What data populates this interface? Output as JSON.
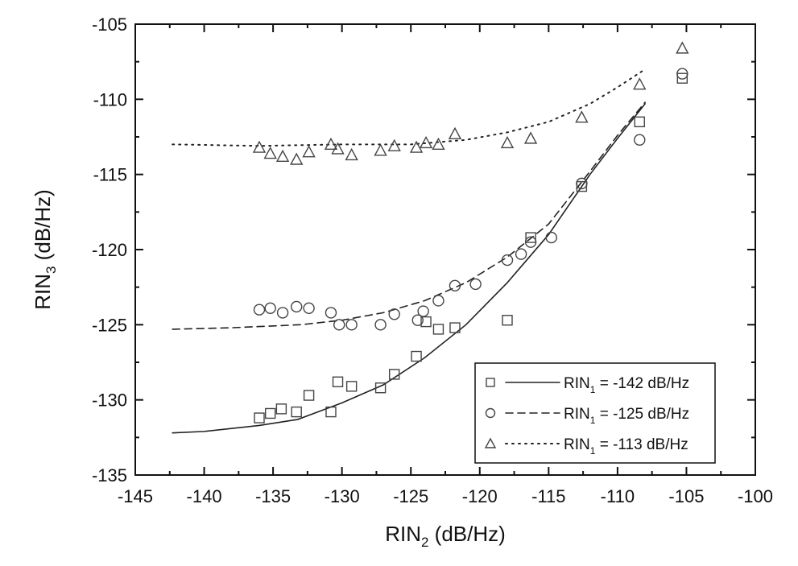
{
  "chart_data": {
    "type": "scatter",
    "title": "",
    "xlabel": "RIN",
    "xlabel_sub": "2",
    "xlabel_unit": " (dB/Hz)",
    "ylabel": "RIN",
    "ylabel_sub": "3",
    "ylabel_unit": " (dB/Hz)",
    "xlim": [
      -145,
      -100
    ],
    "ylim": [
      -135,
      -105
    ],
    "xticks": [
      -145,
      -140,
      -135,
      -130,
      -125,
      -120,
      -115,
      -110,
      -105,
      -100
    ],
    "yticks": [
      -135,
      -130,
      -125,
      -120,
      -115,
      -110,
      -105
    ],
    "grid": false,
    "legend_position": "bottom-right",
    "series": [
      {
        "name": "RIN1 = -142 dB/Hz",
        "legend_prefix": "RIN",
        "legend_sub": "1",
        "legend_suffix": " = -142 dB/Hz",
        "marker": "square",
        "line": "solid",
        "points": [
          [
            -136,
            -131.2
          ],
          [
            -135.2,
            -130.9
          ],
          [
            -134.4,
            -130.6
          ],
          [
            -133.3,
            -130.8
          ],
          [
            -132.4,
            -129.7
          ],
          [
            -130.8,
            -130.8
          ],
          [
            -130.3,
            -128.8
          ],
          [
            -129.3,
            -129.1
          ],
          [
            -127.2,
            -129.2
          ],
          [
            -126.2,
            -128.3
          ],
          [
            -124.6,
            -127.1
          ],
          [
            -123.9,
            -124.8
          ],
          [
            -123,
            -125.3
          ],
          [
            -121.8,
            -125.2
          ],
          [
            -118,
            -124.7
          ],
          [
            -116.3,
            -119.2
          ],
          [
            -112.6,
            -115.8
          ],
          [
            -108.4,
            -111.5
          ],
          [
            -105.3,
            -108.6
          ]
        ],
        "fit": [
          [
            -142.3,
            -132.2
          ],
          [
            -140,
            -132.1
          ],
          [
            -136,
            -131.7
          ],
          [
            -133.2,
            -131.3
          ],
          [
            -130,
            -130.2
          ],
          [
            -127,
            -129
          ],
          [
            -124,
            -127.2
          ],
          [
            -121,
            -125
          ],
          [
            -118,
            -122.2
          ],
          [
            -115,
            -119
          ],
          [
            -112,
            -115
          ],
          [
            -110,
            -112.6
          ],
          [
            -108,
            -110.3
          ]
        ]
      },
      {
        "name": "RIN1 = -125 dB/Hz",
        "legend_prefix": "RIN",
        "legend_sub": "1",
        "legend_suffix": " = -125 dB/Hz",
        "marker": "circle",
        "line": "dashed",
        "points": [
          [
            -136,
            -124
          ],
          [
            -135.2,
            -123.9
          ],
          [
            -134.3,
            -124.2
          ],
          [
            -133.3,
            -123.8
          ],
          [
            -132.4,
            -123.9
          ],
          [
            -130.8,
            -124.2
          ],
          [
            -130.2,
            -125
          ],
          [
            -129.3,
            -125
          ],
          [
            -127.2,
            -125
          ],
          [
            -126.2,
            -124.3
          ],
          [
            -124.5,
            -124.7
          ],
          [
            -124.1,
            -124.1
          ],
          [
            -123,
            -123.4
          ],
          [
            -121.8,
            -122.4
          ],
          [
            -120.3,
            -122.3
          ],
          [
            -118,
            -120.7
          ],
          [
            -117,
            -120.3
          ],
          [
            -116.3,
            -119.5
          ],
          [
            -114.8,
            -119.2
          ],
          [
            -112.6,
            -115.6
          ],
          [
            -108.4,
            -112.7
          ],
          [
            -105.3,
            -108.3
          ]
        ],
        "fit": [
          [
            -142.3,
            -125.3
          ],
          [
            -138,
            -125.2
          ],
          [
            -133,
            -125
          ],
          [
            -130,
            -124.7
          ],
          [
            -127,
            -124.2
          ],
          [
            -124,
            -123.4
          ],
          [
            -121,
            -122.2
          ],
          [
            -118,
            -120.5
          ],
          [
            -115,
            -118.3
          ],
          [
            -112,
            -114.8
          ],
          [
            -110,
            -112.4
          ],
          [
            -108,
            -110.2
          ]
        ]
      },
      {
        "name": "RIN1 = -113 dB/Hz",
        "legend_prefix": "RIN",
        "legend_sub": "1",
        "legend_suffix": " = -113 dB/Hz",
        "marker": "triangle",
        "line": "dotted",
        "points": [
          [
            -136,
            -113.2
          ],
          [
            -135.2,
            -113.6
          ],
          [
            -134.3,
            -113.8
          ],
          [
            -133.3,
            -114
          ],
          [
            -132.4,
            -113.5
          ],
          [
            -130.8,
            -113
          ],
          [
            -130.3,
            -113.3
          ],
          [
            -129.3,
            -113.7
          ],
          [
            -127.2,
            -113.4
          ],
          [
            -126.2,
            -113.1
          ],
          [
            -124.6,
            -113.2
          ],
          [
            -123.9,
            -112.9
          ],
          [
            -123,
            -113
          ],
          [
            -121.8,
            -112.3
          ],
          [
            -118,
            -112.9
          ],
          [
            -116.3,
            -112.6
          ],
          [
            -112.6,
            -111.2
          ],
          [
            -108.4,
            -109
          ],
          [
            -105.3,
            -106.6
          ]
        ],
        "fit": [
          [
            -142.3,
            -113
          ],
          [
            -136,
            -113.1
          ],
          [
            -130,
            -113
          ],
          [
            -125,
            -113
          ],
          [
            -121,
            -112.7
          ],
          [
            -118,
            -112.2
          ],
          [
            -115,
            -111.5
          ],
          [
            -112,
            -110.3
          ],
          [
            -110,
            -109.2
          ],
          [
            -108,
            -108
          ]
        ]
      }
    ]
  }
}
